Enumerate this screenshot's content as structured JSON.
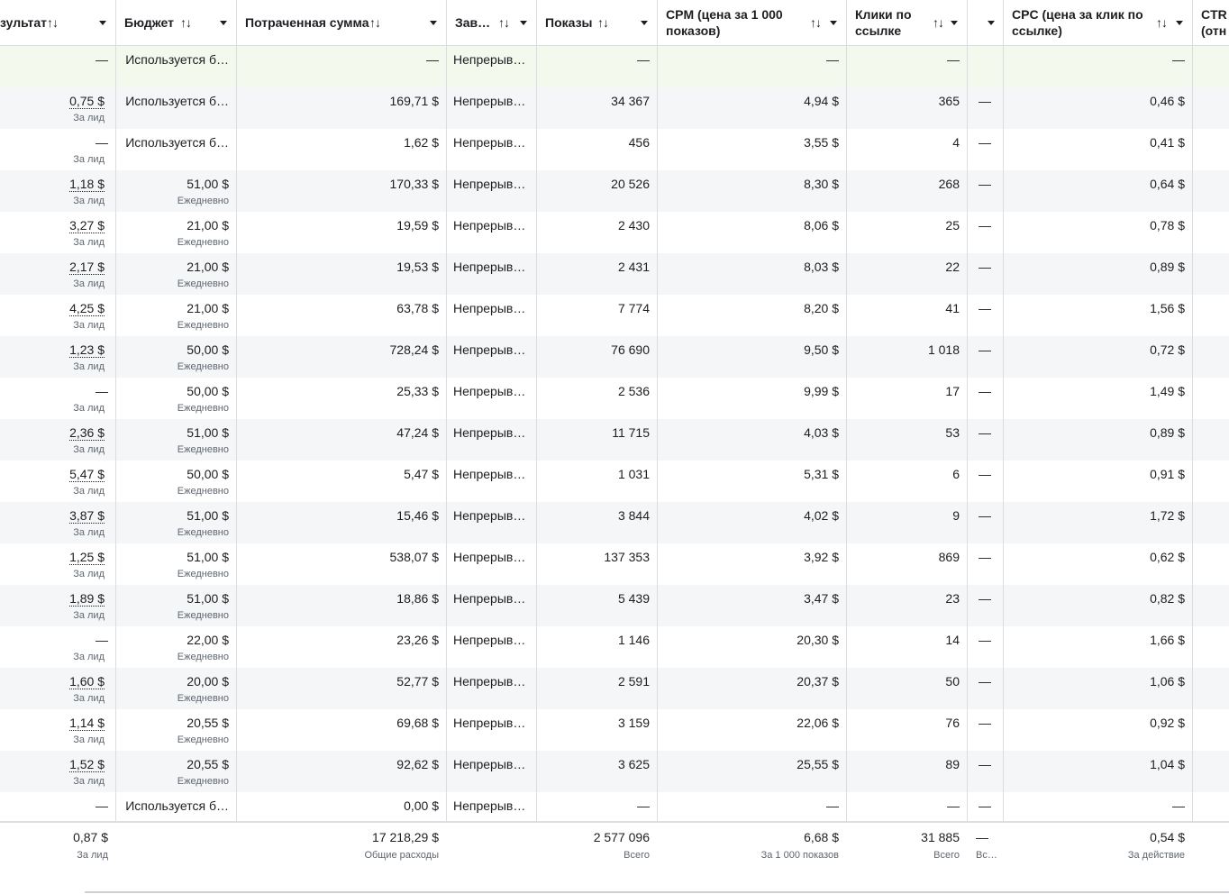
{
  "columns": [
    {
      "key": "result",
      "label": "зультат",
      "sort": "↑↓"
    },
    {
      "key": "budget",
      "label": "Бюджет",
      "sort": "↑↓"
    },
    {
      "key": "spent",
      "label": "Потраченная сумма",
      "sort": "↑↓"
    },
    {
      "key": "end",
      "label": "Зав…",
      "sort": "↑↓"
    },
    {
      "key": "impr",
      "label": "Показы",
      "sort": "↑↓"
    },
    {
      "key": "cpm",
      "label": "CPM (цена за 1 000 показов)",
      "sort": "↑↓"
    },
    {
      "key": "clicks",
      "label": "Клики по ссылке",
      "sort": "↑↓"
    },
    {
      "key": "empty",
      "label": "",
      "sort": ""
    },
    {
      "key": "cpc",
      "label": "CPC (цена за клик по ссылке)",
      "sort": "↑↓"
    },
    {
      "key": "ctr",
      "label": "CTR (отн",
      "sort": ""
    }
  ],
  "rows": [
    {
      "result": "—",
      "result_sub": "",
      "budget": "Используется б…",
      "budget_sub": "",
      "spent": "—",
      "end": "Непрерыв…",
      "impr": "—",
      "cpm": "—",
      "clicks": "—",
      "empty": "",
      "cpc": "—"
    },
    {
      "result": "0,75 $",
      "result_sub": "За лид",
      "budget": "Используется б…",
      "budget_sub": "",
      "spent": "169,71 $",
      "end": "Непрерыв…",
      "impr": "34 367",
      "cpm": "4,94 $",
      "clicks": "365",
      "empty": "—",
      "cpc": "0,46 $"
    },
    {
      "result": "—",
      "result_sub": "За лид",
      "budget": "Используется б…",
      "budget_sub": "",
      "spent": "1,62 $",
      "end": "Непрерыв…",
      "impr": "456",
      "cpm": "3,55 $",
      "clicks": "4",
      "empty": "—",
      "cpc": "0,41 $"
    },
    {
      "result": "1,18 $",
      "result_sub": "За лид",
      "budget": "51,00 $",
      "budget_sub": "Ежедневно",
      "spent": "170,33 $",
      "end": "Непрерыв…",
      "impr": "20 526",
      "cpm": "8,30 $",
      "clicks": "268",
      "empty": "—",
      "cpc": "0,64 $"
    },
    {
      "result": "3,27 $",
      "result_sub": "За лид",
      "budget": "21,00 $",
      "budget_sub": "Ежедневно",
      "spent": "19,59 $",
      "end": "Непрерыв…",
      "impr": "2 430",
      "cpm": "8,06 $",
      "clicks": "25",
      "empty": "—",
      "cpc": "0,78 $"
    },
    {
      "result": "2,17 $",
      "result_sub": "За лид",
      "budget": "21,00 $",
      "budget_sub": "Ежедневно",
      "spent": "19,53 $",
      "end": "Непрерыв…",
      "impr": "2 431",
      "cpm": "8,03 $",
      "clicks": "22",
      "empty": "—",
      "cpc": "0,89 $"
    },
    {
      "result": "4,25 $",
      "result_sub": "За лид",
      "budget": "21,00 $",
      "budget_sub": "Ежедневно",
      "spent": "63,78 $",
      "end": "Непрерыв…",
      "impr": "7 774",
      "cpm": "8,20 $",
      "clicks": "41",
      "empty": "—",
      "cpc": "1,56 $"
    },
    {
      "result": "1,23 $",
      "result_sub": "За лид",
      "budget": "50,00 $",
      "budget_sub": "Ежедневно",
      "spent": "728,24 $",
      "end": "Непрерыв…",
      "impr": "76 690",
      "cpm": "9,50 $",
      "clicks": "1 018",
      "empty": "—",
      "cpc": "0,72 $"
    },
    {
      "result": "—",
      "result_sub": "За лид",
      "budget": "50,00 $",
      "budget_sub": "Ежедневно",
      "spent": "25,33 $",
      "end": "Непрерыв…",
      "impr": "2 536",
      "cpm": "9,99 $",
      "clicks": "17",
      "empty": "—",
      "cpc": "1,49 $"
    },
    {
      "result": "2,36 $",
      "result_sub": "За лид",
      "budget": "51,00 $",
      "budget_sub": "Ежедневно",
      "spent": "47,24 $",
      "end": "Непрерыв…",
      "impr": "11 715",
      "cpm": "4,03 $",
      "clicks": "53",
      "empty": "—",
      "cpc": "0,89 $"
    },
    {
      "result": "5,47 $",
      "result_sub": "За лид",
      "budget": "50,00 $",
      "budget_sub": "Ежедневно",
      "spent": "5,47 $",
      "end": "Непрерыв…",
      "impr": "1 031",
      "cpm": "5,31 $",
      "clicks": "6",
      "empty": "—",
      "cpc": "0,91 $"
    },
    {
      "result": "3,87 $",
      "result_sub": "За лид",
      "budget": "51,00 $",
      "budget_sub": "Ежедневно",
      "spent": "15,46 $",
      "end": "Непрерыв…",
      "impr": "3 844",
      "cpm": "4,02 $",
      "clicks": "9",
      "empty": "—",
      "cpc": "1,72 $"
    },
    {
      "result": "1,25 $",
      "result_sub": "За лид",
      "budget": "51,00 $",
      "budget_sub": "Ежедневно",
      "spent": "538,07 $",
      "end": "Непрерыв…",
      "impr": "137 353",
      "cpm": "3,92 $",
      "clicks": "869",
      "empty": "—",
      "cpc": "0,62 $"
    },
    {
      "result": "1,89 $",
      "result_sub": "За лид",
      "budget": "51,00 $",
      "budget_sub": "Ежедневно",
      "spent": "18,86 $",
      "end": "Непрерыв…",
      "impr": "5 439",
      "cpm": "3,47 $",
      "clicks": "23",
      "empty": "—",
      "cpc": "0,82 $"
    },
    {
      "result": "—",
      "result_sub": "За лид",
      "budget": "22,00 $",
      "budget_sub": "Ежедневно",
      "spent": "23,26 $",
      "end": "Непрерыв…",
      "impr": "1 146",
      "cpm": "20,30 $",
      "clicks": "14",
      "empty": "—",
      "cpc": "1,66 $"
    },
    {
      "result": "1,60 $",
      "result_sub": "За лид",
      "budget": "20,00 $",
      "budget_sub": "Ежедневно",
      "spent": "52,77 $",
      "end": "Непрерыв…",
      "impr": "2 591",
      "cpm": "20,37 $",
      "clicks": "50",
      "empty": "—",
      "cpc": "1,06 $"
    },
    {
      "result": "1,14 $",
      "result_sub": "За лид",
      "budget": "20,55 $",
      "budget_sub": "Ежедневно",
      "spent": "69,68 $",
      "end": "Непрерыв…",
      "impr": "3 159",
      "cpm": "22,06 $",
      "clicks": "76",
      "empty": "—",
      "cpc": "0,92 $"
    },
    {
      "result": "1,52 $",
      "result_sub": "За лид",
      "budget": "20,55 $",
      "budget_sub": "Ежедневно",
      "spent": "92,62 $",
      "end": "Непрерыв…",
      "impr": "3 625",
      "cpm": "25,55 $",
      "clicks": "89",
      "empty": "—",
      "cpc": "1,04 $"
    },
    {
      "result": "—",
      "result_sub": "",
      "budget": "Используется б…",
      "budget_sub": "",
      "spent": "0,00 $",
      "end": "Непрерыв…",
      "impr": "—",
      "cpm": "—",
      "clicks": "—",
      "empty": "—",
      "cpc": "—"
    }
  ],
  "totals": {
    "result": "0,87 $",
    "result_sub": "За лид",
    "spent": "17 218,29 $",
    "spent_sub": "Общие расходы",
    "impr": "2 577 096",
    "impr_sub": "Всего",
    "cpm": "6,68 $",
    "cpm_sub": "За 1 000 показов",
    "clicks": "31 885",
    "clicks_sub": "Всего",
    "empty": "—",
    "empty_sub": "Вс…",
    "cpc": "0,54 $",
    "cpc_sub": "За действие"
  },
  "colors": {
    "grid": "#dadde1",
    "row_alt": "#f5f6f7",
    "row_first": "#f3f9ec",
    "muted": "#606770"
  }
}
